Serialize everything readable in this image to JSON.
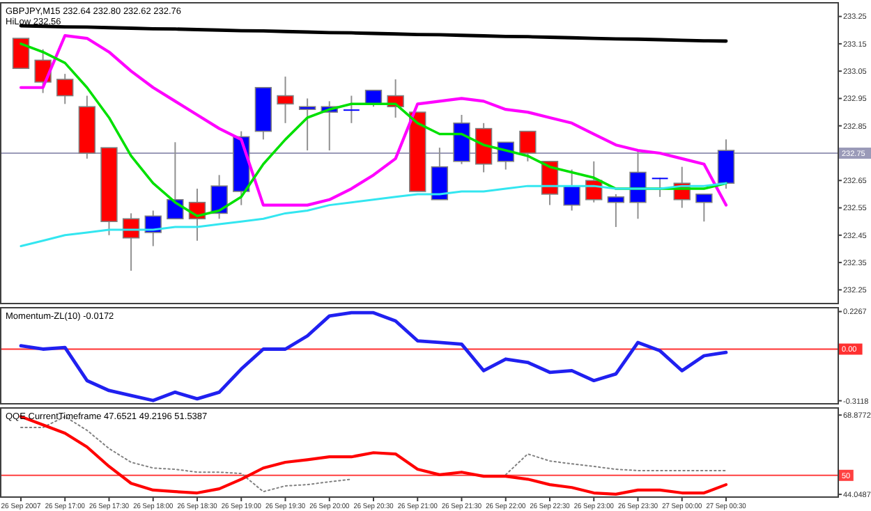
{
  "chart_data": [
    {
      "type": "candlestick",
      "title": "GBPJPY,M15 232.64 232.80 232.62 232.76",
      "subtitle": "HiLow 232.56",
      "tick_labels": "y",
      "categories": [
        null,
        null,
        null,
        null,
        null,
        null,
        null,
        null,
        null,
        null,
        null,
        null,
        null,
        null,
        null,
        null,
        null,
        null,
        null,
        null,
        null,
        null,
        null,
        null,
        null,
        null,
        null,
        null,
        null,
        null,
        null,
        null,
        null
      ],
      "ohlc": [
        [
          233.17,
          233.17,
          233.06,
          233.06
        ],
        [
          233.09,
          233.13,
          232.97,
          233.01
        ],
        [
          233.02,
          233.04,
          232.93,
          232.96
        ],
        [
          232.92,
          232.96,
          232.73,
          232.75
        ],
        [
          232.77,
          232.77,
          232.45,
          232.5
        ],
        [
          232.51,
          232.53,
          232.32,
          232.44
        ],
        [
          232.46,
          232.54,
          232.41,
          232.52
        ],
        [
          232.51,
          232.79,
          232.51,
          232.58
        ],
        [
          232.57,
          232.62,
          232.43,
          232.51
        ],
        [
          232.53,
          232.67,
          232.51,
          232.63
        ],
        [
          232.61,
          232.83,
          232.56,
          232.81
        ],
        [
          232.83,
          232.99,
          232.8,
          232.99
        ],
        [
          232.96,
          233.03,
          232.86,
          232.93
        ],
        [
          232.91,
          232.95,
          232.76,
          232.92
        ],
        [
          232.9,
          232.94,
          232.76,
          232.92
        ],
        [
          232.91,
          232.96,
          232.86,
          232.91
        ],
        [
          232.93,
          232.98,
          232.92,
          232.98
        ],
        [
          232.96,
          233.02,
          232.88,
          232.92
        ],
        [
          232.9,
          232.9,
          232.61,
          232.61
        ],
        [
          232.58,
          232.77,
          232.58,
          232.7
        ],
        [
          232.72,
          232.89,
          232.71,
          232.86
        ],
        [
          232.84,
          232.86,
          232.68,
          232.71
        ],
        [
          232.72,
          232.79,
          232.69,
          232.79
        ],
        [
          232.83,
          232.83,
          232.72,
          232.75
        ],
        [
          232.72,
          232.72,
          232.56,
          232.6
        ],
        [
          232.56,
          232.69,
          232.54,
          232.63
        ],
        [
          232.65,
          232.72,
          232.57,
          232.58
        ],
        [
          232.57,
          232.6,
          232.48,
          232.59
        ],
        [
          232.57,
          232.76,
          232.51,
          232.68
        ],
        [
          232.66,
          232.66,
          232.59,
          232.66
        ],
        [
          232.64,
          232.7,
          232.55,
          232.58
        ],
        [
          232.57,
          232.6,
          232.5,
          232.6
        ],
        [
          232.64,
          232.8,
          232.62,
          232.76
        ]
      ],
      "colors": [
        "#ff0000",
        "#ff0000",
        "#ff0000",
        "#ff0000",
        "#ff0000",
        "#ff0000",
        "#0000ff",
        "#0000ff",
        "#ff0000",
        "#0000ff",
        "#0000ff",
        "#0000ff",
        "#ff0000",
        "#0000ff",
        "#0000ff",
        "#0000ff",
        "#0000ff",
        "#ff0000",
        "#ff0000",
        "#0000ff",
        "#0000ff",
        "#ff0000",
        "#0000ff",
        "#ff0000",
        "#ff0000",
        "#0000ff",
        "#ff0000",
        "#0000ff",
        "#0000ff",
        "#0000ff",
        "#ff0000",
        "#0000ff",
        "#0000ff"
      ],
      "series": [
        {
          "type": "line",
          "color": "#000000",
          "values": [
            233.216,
            233.214,
            233.212,
            233.211,
            233.209,
            233.207,
            233.205,
            233.204,
            233.202,
            233.2,
            233.198,
            233.197,
            233.195,
            233.193,
            233.191,
            233.19,
            233.188,
            233.186,
            233.184,
            233.183,
            233.181,
            233.179,
            233.177,
            233.176,
            233.174,
            233.172,
            233.17,
            233.168,
            233.167,
            233.165,
            233.163,
            233.161,
            233.16
          ]
        },
        {
          "type": "line",
          "color": "#ff00ff",
          "values": [
            232.99,
            232.99,
            233.18,
            233.17,
            233.12,
            233.05,
            232.99,
            232.94,
            232.89,
            232.84,
            232.8,
            232.56,
            232.56,
            232.56,
            232.58,
            232.62,
            232.67,
            232.73,
            232.93,
            232.94,
            232.95,
            232.94,
            232.91,
            232.9,
            232.88,
            232.86,
            232.82,
            232.78,
            232.76,
            232.75,
            232.73,
            232.71,
            232.56
          ]
        },
        {
          "type": "line",
          "color": "#00e000",
          "values": [
            233.15,
            233.12,
            233.08,
            232.99,
            232.88,
            232.74,
            232.64,
            232.57,
            232.52,
            232.54,
            232.59,
            232.71,
            232.8,
            232.88,
            232.91,
            232.93,
            232.93,
            232.93,
            232.86,
            232.82,
            232.82,
            232.78,
            232.76,
            232.74,
            232.7,
            232.68,
            232.66,
            232.62,
            232.62,
            232.62,
            232.62,
            232.62,
            232.64
          ]
        },
        {
          "type": "line",
          "color": "#33e6f0",
          "values": [
            232.41,
            232.43,
            232.45,
            232.46,
            232.47,
            232.47,
            232.47,
            232.48,
            232.48,
            232.49,
            232.5,
            232.51,
            232.53,
            232.54,
            232.56,
            232.57,
            232.58,
            232.59,
            232.6,
            232.6,
            232.61,
            232.61,
            232.62,
            232.63,
            232.63,
            232.63,
            232.63,
            232.62,
            232.62,
            232.62,
            232.63,
            232.63,
            232.64
          ]
        }
      ],
      "ylim": [
        232.2,
        233.3
      ],
      "yticks": [
        233.25,
        233.15,
        233.05,
        232.95,
        232.85,
        232.65,
        232.55,
        232.45,
        232.35,
        232.25
      ],
      "ref_lines": [
        {
          "axis": "y",
          "value": 232.75,
          "label": "232.75",
          "color": "#9a9ab8"
        }
      ]
    },
    {
      "type": "line",
      "title": "Momentum-ZL(10) -0.0172",
      "tick_labels": "y",
      "categories": [
        null,
        null,
        null,
        null,
        null,
        null,
        null,
        null,
        null,
        null,
        null,
        null,
        null,
        null,
        null,
        null,
        null,
        null,
        null,
        null,
        null,
        null,
        null,
        null,
        null,
        null,
        null,
        null,
        null,
        null,
        null,
        null,
        null
      ],
      "series": [
        {
          "color": "#2020f0",
          "values": [
            0.02,
            0.0,
            0.01,
            -0.19,
            -0.25,
            -0.28,
            -0.31,
            -0.26,
            -0.3,
            -0.26,
            -0.12,
            0.0,
            0.0,
            0.08,
            0.2,
            0.22,
            0.22,
            0.17,
            0.05,
            0.04,
            0.03,
            -0.13,
            -0.06,
            -0.08,
            -0.14,
            -0.13,
            -0.19,
            -0.15,
            0.04,
            -0.01,
            -0.13,
            -0.04,
            -0.02
          ]
        }
      ],
      "ylim": [
        -0.33,
        0.25
      ],
      "yticks": [
        0.2267,
        -0.3118
      ],
      "ref_lines": [
        {
          "axis": "y",
          "value": 0,
          "label": "0.00",
          "color": "#ff3030"
        }
      ]
    },
    {
      "type": "line",
      "title": "QQE CurrentTimeframe 47.6521 49.2196 51.5387",
      "categories": [
        "26 Sep 2007",
        null,
        "26 Sep 17:00",
        null,
        "26 Sep 17:30",
        null,
        "26 Sep 18:00",
        null,
        "26 Sep 18:30",
        null,
        "26 Sep 19:00",
        null,
        "26 Sep 19:30",
        null,
        "26 Sep 20:00",
        null,
        "26 Sep 20:30",
        null,
        "26 Sep 21:00",
        null,
        "26 Sep 21:30",
        null,
        "26 Sep 22:00",
        null,
        "26 Sep 22:30",
        null,
        "26 Sep 23:00",
        null,
        "26 Sep 23:30",
        null,
        "27 Sep 00:00",
        null,
        "27 Sep 00:30"
      ],
      "series": [
        {
          "color": "#808080",
          "line_style": "dotted",
          "values": [
            65.0,
            65.0,
            68.4,
            64.1,
            58.4,
            54.1,
            52.3,
            51.9,
            51.0,
            51.0,
            50.6,
            44.9,
            46.7,
            47.1,
            48.0,
            48.8,
            null,
            null,
            null,
            null,
            null,
            null,
            50.2,
            56.7,
            54.5,
            53.6,
            52.8,
            51.9,
            51.5,
            51.5,
            51.5,
            51.5,
            51.5
          ]
        },
        {
          "color": "#ff0000",
          "values": [
            68.4,
            65.8,
            63.2,
            58.9,
            52.8,
            47.5,
            45.4,
            44.9,
            44.5,
            45.8,
            48.8,
            52.3,
            54.1,
            54.9,
            55.8,
            55.8,
            57.1,
            56.7,
            51.9,
            50.2,
            51.0,
            49.7,
            49.7,
            48.8,
            47.1,
            46.2,
            44.5,
            44.1,
            45.4,
            45.4,
            44.5,
            44.5,
            47.1
          ]
        }
      ],
      "ylim": [
        43.2,
        71.1
      ],
      "yticks": [
        68.8772,
        44.0487
      ],
      "ref_lines": [
        {
          "axis": "y",
          "value": 50,
          "label": "50",
          "color": "#ff4040"
        }
      ]
    }
  ]
}
